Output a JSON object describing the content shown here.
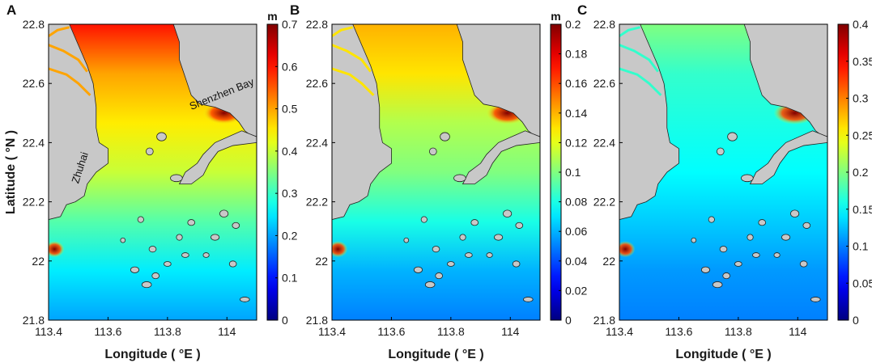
{
  "chart_data": [
    {
      "type": "heatmap",
      "panel_label": "A",
      "colorbar_unit": "m",
      "xlabel": "Longitude ( °E )",
      "ylabel": "Latitude ( °N )",
      "xlim": [
        113.4,
        114.1
      ],
      "ylim": [
        21.8,
        22.8
      ],
      "xticks": [
        "113.4",
        "113.6",
        "113.8",
        "114"
      ],
      "yticks": [
        "21.8",
        "22",
        "22.2",
        "22.4",
        "22.6",
        "22.8"
      ],
      "colorbar_range": [
        0,
        0.7
      ],
      "colorbar_ticks": [
        "0",
        "0.1",
        "0.2",
        "0.3",
        "0.4",
        "0.5",
        "0.6",
        "0.7"
      ],
      "annotations": [
        "Shenzhen Bay",
        "Zhuhai"
      ],
      "field_profile": [
        0.2,
        0.25,
        0.32,
        0.4,
        0.45,
        0.5,
        0.6
      ],
      "hotspot_max": 0.7
    },
    {
      "type": "heatmap",
      "panel_label": "B",
      "colorbar_unit": "m",
      "xlabel": "Longitude ( °E )",
      "xlim": [
        113.4,
        114.1
      ],
      "ylim": [
        21.8,
        22.8
      ],
      "xticks": [
        "113.4",
        "113.6",
        "113.8",
        "114"
      ],
      "yticks": [
        "21.8",
        "22",
        "22.2",
        "22.4",
        "22.6",
        "22.8"
      ],
      "colorbar_range": [
        0,
        0.2
      ],
      "colorbar_ticks": [
        "0",
        "0.02",
        "0.04",
        "0.06",
        "0.08",
        "0.1",
        "0.12",
        "0.14",
        "0.16",
        "0.18",
        "0.2"
      ],
      "field_profile": [
        0.05,
        0.06,
        0.08,
        0.1,
        0.11,
        0.13,
        0.14
      ],
      "hotspot_max": 0.2
    },
    {
      "type": "heatmap",
      "panel_label": "C",
      "colorbar_unit": "",
      "xlabel": "Longitude ( °E )",
      "xlim": [
        113.4,
        114.1
      ],
      "ylim": [
        21.8,
        22.8
      ],
      "xticks": [
        "113.4",
        "113.6",
        "113.8",
        "114"
      ],
      "yticks": [
        "21.8",
        "22",
        "22.2",
        "22.4",
        "22.6",
        "22.8"
      ],
      "colorbar_range": [
        0,
        0.4
      ],
      "colorbar_ticks": [
        "0",
        "0.05",
        "0.1",
        "0.15",
        "0.2",
        "0.25",
        "0.3",
        "0.35",
        "0.4"
      ],
      "field_profile": [
        0.1,
        0.11,
        0.13,
        0.15,
        0.16,
        0.17,
        0.2
      ],
      "hotspot_max": 0.4
    }
  ],
  "colormap": "jet",
  "land_color": "#c8c8c8"
}
